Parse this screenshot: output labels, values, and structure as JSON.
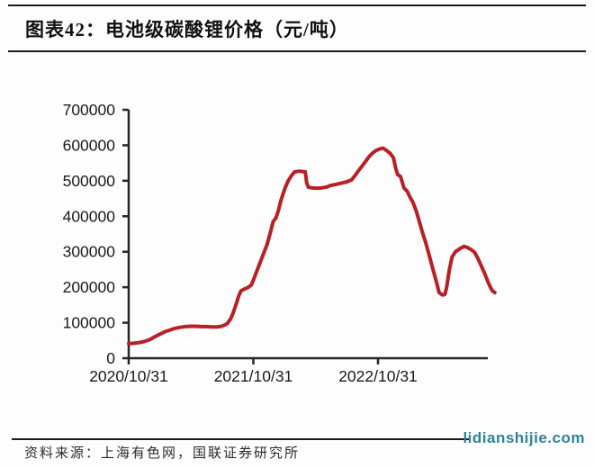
{
  "header": {
    "title": "图表42：电池级碳酸锂价格（元/吨）"
  },
  "footer": {
    "source": "资料来源：上海有色网，国联证券研究所",
    "watermark": "lidianshijie.com"
  },
  "colors": {
    "line_red": "#b92025",
    "axis_black": "#262626",
    "rule_black": "#1c1c1c",
    "watermark_teal": "#2e8398",
    "tick_text": "#1a1a1a"
  },
  "chart_data": {
    "type": "line",
    "title": "电池级碳酸锂价格（元/吨）",
    "xlabel": "",
    "ylabel": "",
    "ylim": [
      0,
      700000
    ],
    "y_ticks": [
      0,
      100000,
      200000,
      300000,
      400000,
      500000,
      600000,
      700000
    ],
    "x_ticks": [
      "2020/10/31",
      "2021/10/31",
      "2022/10/31"
    ],
    "grid": false,
    "legend_position": "none",
    "line_color": "#b92025",
    "series": [
      {
        "name": "电池级碳酸锂价格",
        "points": [
          [
            "2020-10-31",
            41000
          ],
          [
            "2020-11-15",
            42000
          ],
          [
            "2020-11-30",
            44000
          ],
          [
            "2020-12-15",
            47000
          ],
          [
            "2020-12-31",
            52000
          ],
          [
            "2021-01-15",
            60000
          ],
          [
            "2021-01-31",
            68000
          ],
          [
            "2021-02-15",
            75000
          ],
          [
            "2021-02-28",
            79000
          ],
          [
            "2021-03-15",
            84000
          ],
          [
            "2021-03-31",
            87000
          ],
          [
            "2021-04-15",
            89000
          ],
          [
            "2021-04-30",
            90000
          ],
          [
            "2021-05-15",
            90000
          ],
          [
            "2021-05-31",
            89000
          ],
          [
            "2021-06-15",
            89000
          ],
          [
            "2021-06-30",
            88000
          ],
          [
            "2021-07-15",
            88000
          ],
          [
            "2021-07-31",
            90000
          ],
          [
            "2021-08-15",
            97000
          ],
          [
            "2021-08-25",
            110000
          ],
          [
            "2021-09-01",
            125000
          ],
          [
            "2021-09-10",
            150000
          ],
          [
            "2021-09-18",
            175000
          ],
          [
            "2021-09-25",
            190000
          ],
          [
            "2021-10-05",
            195000
          ],
          [
            "2021-10-15",
            199000
          ],
          [
            "2021-10-25",
            206000
          ],
          [
            "2021-10-31",
            220000
          ],
          [
            "2021-11-10",
            245000
          ],
          [
            "2021-11-20",
            270000
          ],
          [
            "2021-11-30",
            295000
          ],
          [
            "2021-12-10",
            320000
          ],
          [
            "2021-12-20",
            355000
          ],
          [
            "2021-12-28",
            385000
          ],
          [
            "2022-01-05",
            395000
          ],
          [
            "2022-01-12",
            415000
          ],
          [
            "2022-01-20",
            445000
          ],
          [
            "2022-02-01",
            480000
          ],
          [
            "2022-02-10",
            500000
          ],
          [
            "2022-02-20",
            515000
          ],
          [
            "2022-03-01",
            525000
          ],
          [
            "2022-03-15",
            527000
          ],
          [
            "2022-04-01",
            525000
          ],
          [
            "2022-04-05",
            495000
          ],
          [
            "2022-04-10",
            482000
          ],
          [
            "2022-04-20",
            480000
          ],
          [
            "2022-05-05",
            479000
          ],
          [
            "2022-05-20",
            480000
          ],
          [
            "2022-06-01",
            482000
          ],
          [
            "2022-06-15",
            487000
          ],
          [
            "2022-07-01",
            490000
          ],
          [
            "2022-07-15",
            493000
          ],
          [
            "2022-08-01",
            497000
          ],
          [
            "2022-08-15",
            503000
          ],
          [
            "2022-08-25",
            515000
          ],
          [
            "2022-09-05",
            530000
          ],
          [
            "2022-09-15",
            542000
          ],
          [
            "2022-09-25",
            555000
          ],
          [
            "2022-10-05",
            568000
          ],
          [
            "2022-10-15",
            578000
          ],
          [
            "2022-10-25",
            585000
          ],
          [
            "2022-11-05",
            590000
          ],
          [
            "2022-11-15",
            592000
          ],
          [
            "2022-11-25",
            585000
          ],
          [
            "2022-12-05",
            578000
          ],
          [
            "2022-12-15",
            565000
          ],
          [
            "2022-12-22",
            535000
          ],
          [
            "2022-12-28",
            517000
          ],
          [
            "2023-01-05",
            512000
          ],
          [
            "2023-01-15",
            480000
          ],
          [
            "2023-01-25",
            470000
          ],
          [
            "2023-02-01",
            455000
          ],
          [
            "2023-02-10",
            440000
          ],
          [
            "2023-02-20",
            415000
          ],
          [
            "2023-03-01",
            385000
          ],
          [
            "2023-03-10",
            355000
          ],
          [
            "2023-03-20",
            325000
          ],
          [
            "2023-03-30",
            290000
          ],
          [
            "2023-04-10",
            250000
          ],
          [
            "2023-04-20",
            215000
          ],
          [
            "2023-04-28",
            185000
          ],
          [
            "2023-05-08",
            178000
          ],
          [
            "2023-05-15",
            180000
          ],
          [
            "2023-05-20",
            200000
          ],
          [
            "2023-05-28",
            250000
          ],
          [
            "2023-06-05",
            285000
          ],
          [
            "2023-06-15",
            300000
          ],
          [
            "2023-06-30",
            310000
          ],
          [
            "2023-07-10",
            315000
          ],
          [
            "2023-07-20",
            312000
          ],
          [
            "2023-08-01",
            305000
          ],
          [
            "2023-08-10",
            298000
          ],
          [
            "2023-08-20",
            280000
          ],
          [
            "2023-09-01",
            255000
          ],
          [
            "2023-09-10",
            235000
          ],
          [
            "2023-09-18",
            215000
          ],
          [
            "2023-09-25",
            200000
          ],
          [
            "2023-10-01",
            190000
          ],
          [
            "2023-10-08",
            185000
          ]
        ]
      }
    ]
  }
}
